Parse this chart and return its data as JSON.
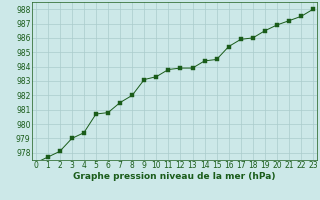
{
  "x": [
    0,
    1,
    2,
    3,
    4,
    5,
    6,
    7,
    8,
    9,
    10,
    11,
    12,
    13,
    14,
    15,
    16,
    17,
    18,
    19,
    20,
    21,
    22,
    23
  ],
  "y": [
    977.3,
    977.7,
    978.1,
    979.0,
    979.4,
    980.7,
    980.8,
    981.5,
    982.0,
    983.1,
    983.3,
    983.8,
    983.9,
    983.9,
    984.4,
    984.5,
    985.4,
    985.9,
    986.0,
    986.5,
    986.9,
    987.2,
    987.5,
    988.0
  ],
  "line_color": "#1a5c1a",
  "marker": "s",
  "marker_size": 2.5,
  "bg_color": "#cce8e8",
  "grid_color": "#aacccc",
  "ylabel_ticks": [
    978,
    979,
    980,
    981,
    982,
    983,
    984,
    985,
    986,
    987,
    988
  ],
  "xlabel_ticks": [
    0,
    1,
    2,
    3,
    4,
    5,
    6,
    7,
    8,
    9,
    10,
    11,
    12,
    13,
    14,
    15,
    16,
    17,
    18,
    19,
    20,
    21,
    22,
    23
  ],
  "xlabel": "Graphe pression niveau de la mer (hPa)",
  "ylim": [
    977.5,
    988.5
  ],
  "xlim": [
    -0.3,
    23.3
  ],
  "tick_fontsize": 5.5,
  "label_fontsize": 6.5
}
